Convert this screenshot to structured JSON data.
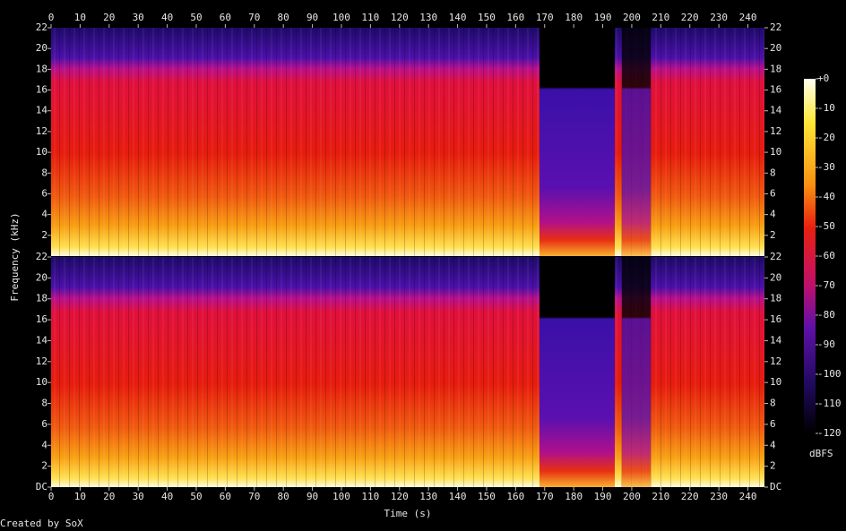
{
  "chart_data": [
    {
      "type": "spectrogram",
      "xlim": [
        0,
        245.7
      ],
      "xticks": [
        0,
        10,
        20,
        30,
        40,
        50,
        60,
        70,
        80,
        90,
        100,
        110,
        120,
        130,
        140,
        150,
        160,
        170,
        180,
        190,
        200,
        210,
        220,
        230,
        240
      ],
      "ylim": [
        0,
        22
      ],
      "yticks": [
        2,
        4,
        6,
        8,
        10,
        12,
        14,
        16,
        18,
        20,
        22
      ]
    },
    {
      "type": "spectrogram",
      "xlabel": "Time (s)",
      "xlim": [
        0,
        245.7
      ],
      "xticks": [
        0,
        10,
        20,
        30,
        40,
        50,
        60,
        70,
        80,
        90,
        100,
        110,
        120,
        130,
        140,
        150,
        160,
        170,
        180,
        190,
        200,
        210,
        220,
        230,
        240
      ],
      "ylim": [
        0,
        22
      ],
      "yticks": [
        {
          "value": 0,
          "label": "DC"
        },
        2,
        4,
        6,
        8,
        10,
        12,
        14,
        16,
        18,
        20,
        22
      ]
    }
  ],
  "ylabel": "Frequency (kHz)",
  "footer": "Created by SoX",
  "colorbar": {
    "label": "dBFS",
    "lim": [
      -120,
      0
    ],
    "ticks": [
      {
        "value": 0,
        "label": "+0"
      },
      -10,
      -20,
      -30,
      -40,
      -50,
      -60,
      -70,
      -80,
      -90,
      -100,
      -110,
      -120
    ]
  }
}
